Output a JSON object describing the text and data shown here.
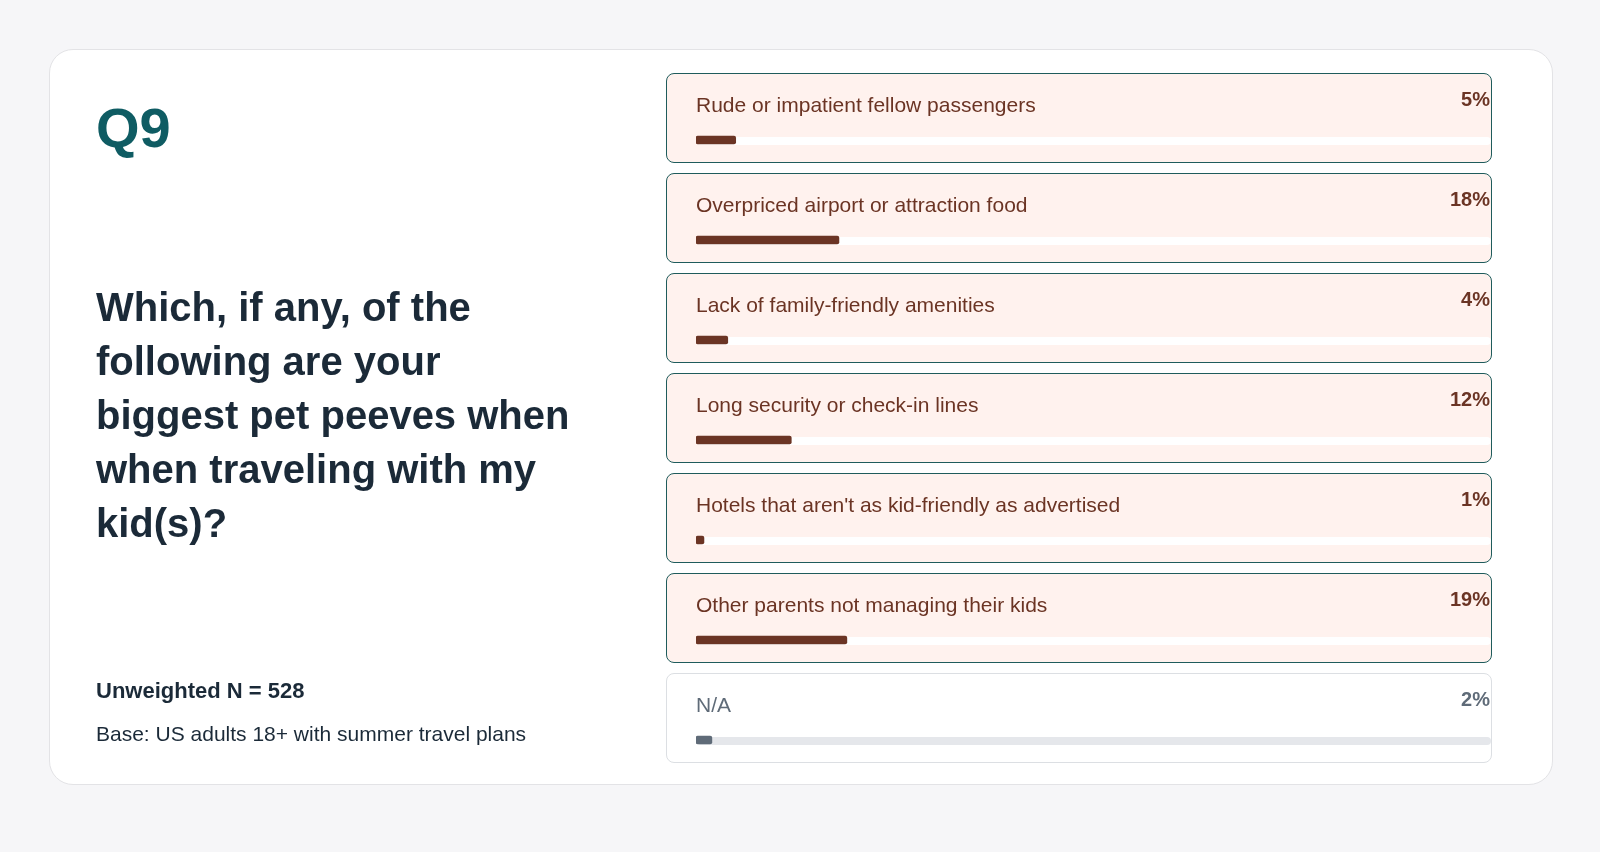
{
  "chart_data": {
    "type": "bar",
    "orientation": "horizontal",
    "title": "Q9",
    "subtitle": "Which, if any, of the following are your biggest pet peeves when when traveling with my kid(s)?",
    "categories": [
      "Rude or impatient fellow passengers",
      "Overpriced airport or attraction food",
      "Lack of family-friendly amenities",
      "Long security or check-in lines",
      "Hotels that aren't as kid-friendly as advertised",
      "Other parents not managing their kids",
      "N/A"
    ],
    "values": [
      5,
      18,
      4,
      12,
      1,
      19,
      2
    ],
    "colors": [
      "#6b3424",
      "#6b3424",
      "#6b3424",
      "#6b3424",
      "#6b3424",
      "#6b3424",
      "#5f6b78"
    ],
    "value_labels": [
      "5%",
      "18%",
      "4%",
      "12%",
      "1%",
      "19%",
      "2%"
    ],
    "xlim": [
      0,
      100
    ],
    "legend": false,
    "tick_labels": false,
    "annotations": [
      "Unweighted N = 528",
      "Base: US adults 18+ with summer travel plans"
    ]
  }
}
